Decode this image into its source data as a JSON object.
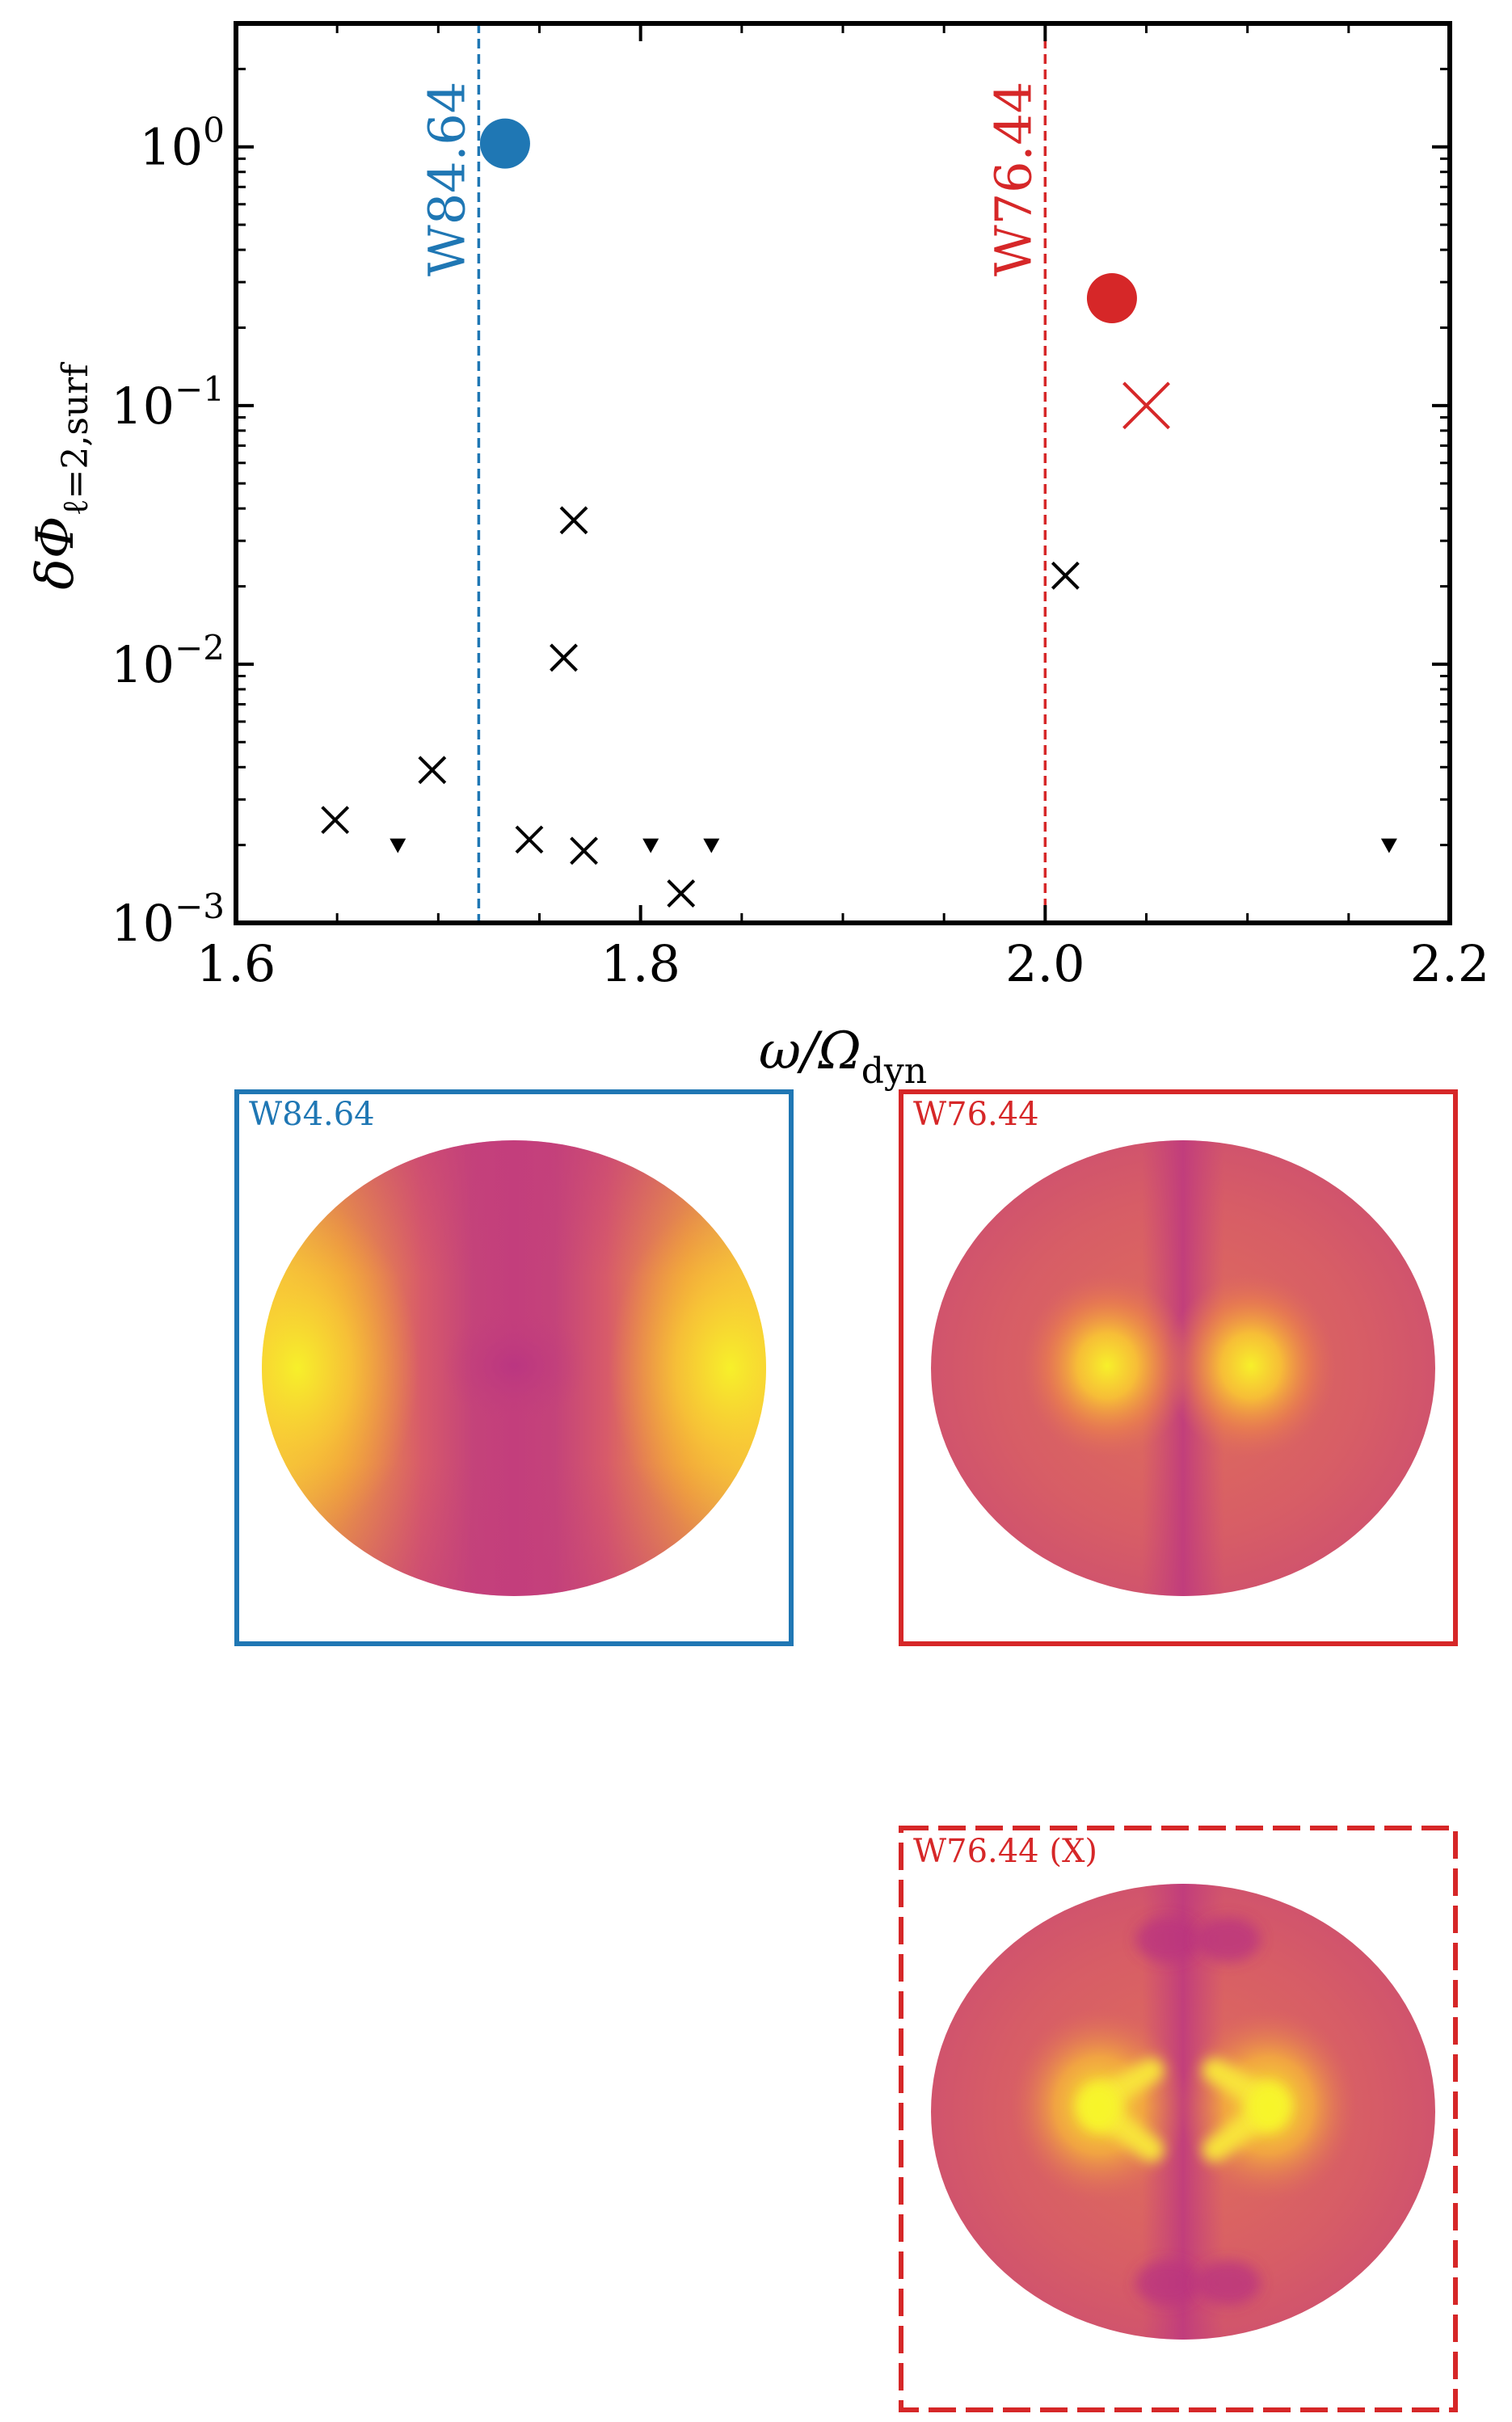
{
  "chart_data": {
    "type": "scatter",
    "xlabel": "ω/Ω",
    "xlabel_sub": "dyn",
    "ylabel": "δΦ",
    "ylabel_sub": "ℓ=2,surf",
    "xlim": [
      1.6,
      2.2
    ],
    "ylim": [
      0.001,
      3.0
    ],
    "yscale": "log",
    "grid": false,
    "x_ticks": [
      {
        "value": 1.6,
        "label": "1.6"
      },
      {
        "value": 1.8,
        "label": "1.8"
      },
      {
        "value": 2.0,
        "label": "2.0"
      },
      {
        "value": 2.2,
        "label": "2.2"
      }
    ],
    "y_ticks": [
      {
        "value": 0.001,
        "base": "10",
        "exp": "−3"
      },
      {
        "value": 0.01,
        "base": "10",
        "exp": "−2"
      },
      {
        "value": 0.1,
        "base": "10",
        "exp": "−1"
      },
      {
        "value": 1,
        "base": "10",
        "exp": "0"
      }
    ],
    "vlines": [
      {
        "x": 1.72,
        "label": "W84.64",
        "color": "#1f77b4"
      },
      {
        "x": 2.0,
        "label": "W76.44",
        "color": "#d62728"
      }
    ],
    "highlight_points": [
      {
        "x": 1.733,
        "y": 1.03,
        "marker": "circle",
        "color": "#1f77b4"
      },
      {
        "x": 2.033,
        "y": 0.26,
        "marker": "circle",
        "color": "#d62728"
      },
      {
        "x": 2.05,
        "y": 0.1,
        "marker": "x",
        "color": "#d62728"
      }
    ],
    "series": [
      {
        "marker": "x",
        "color": "#000000",
        "points": [
          {
            "x": 1.649,
            "y": 0.0025
          },
          {
            "x": 1.697,
            "y": 0.0039
          },
          {
            "x": 1.745,
            "y": 0.0021
          },
          {
            "x": 1.762,
            "y": 0.0106
          },
          {
            "x": 1.767,
            "y": 0.036
          },
          {
            "x": 1.772,
            "y": 0.0019
          },
          {
            "x": 1.82,
            "y": 0.0013
          },
          {
            "x": 2.01,
            "y": 0.022
          }
        ]
      },
      {
        "marker": "triangle-down",
        "color": "#000000",
        "points": [
          {
            "x": 1.68,
            "y": 0.002
          },
          {
            "x": 1.805,
            "y": 0.002
          },
          {
            "x": 1.835,
            "y": 0.002
          },
          {
            "x": 2.17,
            "y": 0.002
          }
        ]
      }
    ]
  },
  "panels": [
    {
      "label": "W84.64",
      "color": "#1f77b4",
      "border": "solid",
      "pattern": "lobes-outer"
    },
    {
      "label": "W76.44",
      "color": "#d62728",
      "border": "solid",
      "pattern": "lobes-inner"
    },
    {
      "label": "W76.44 (X)",
      "color": "#d62728",
      "border": "dashed",
      "pattern": "chevrons"
    }
  ]
}
